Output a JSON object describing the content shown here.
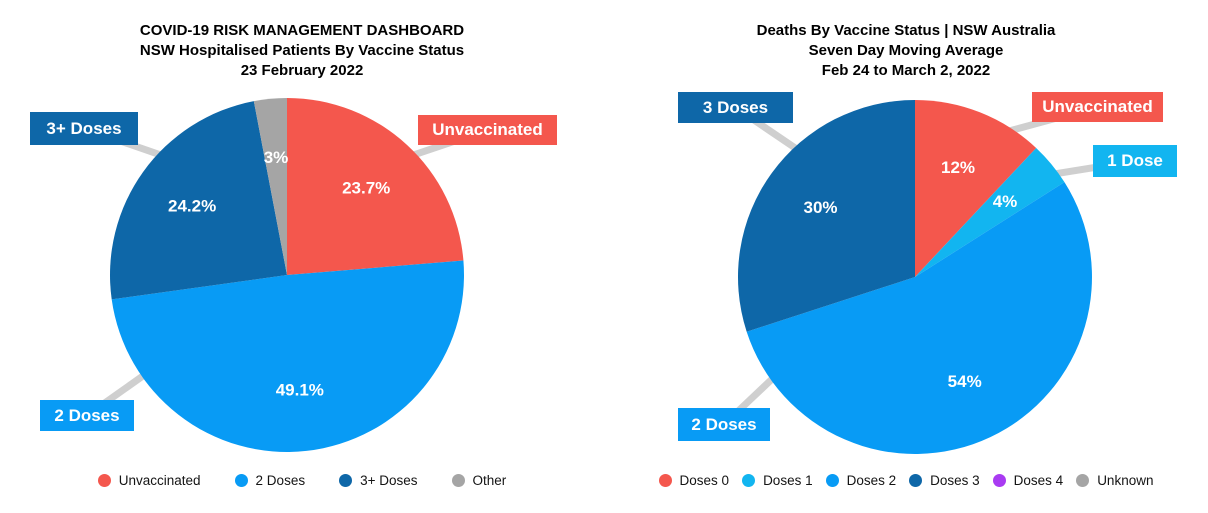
{
  "chart_data": [
    {
      "type": "pie",
      "title": "COVID-19 RISK MANAGEMENT DASHBOARD",
      "subtitle": "NSW Hospitalised Patients By Vaccine Status",
      "date_line": "23 February 2022",
      "direction": "clockwise",
      "start_angle_deg": 0,
      "slices": [
        {
          "label": "Unvaccinated",
          "value": 23.7,
          "display": "23.7%",
          "color": "#F4574D"
        },
        {
          "label": "2 Doses",
          "value": 49.1,
          "display": "49.1%",
          "color": "#089BF5"
        },
        {
          "label": "3+ Doses",
          "value": 24.2,
          "display": "24.2%",
          "color": "#0E67A8"
        },
        {
          "label": "Other",
          "value": 3.0,
          "display": "3%",
          "color": "#A5A5A5"
        }
      ],
      "callouts": [
        {
          "text": "3+ Doses",
          "color": "#0E67A8"
        },
        {
          "text": "Unvaccinated",
          "color": "#F4574D"
        },
        {
          "text": "2 Doses",
          "color": "#089BF5"
        }
      ],
      "legend": [
        {
          "label": "Unvaccinated",
          "color": "#F4574D"
        },
        {
          "label": "2 Doses",
          "color": "#089BF5"
        },
        {
          "label": "3+ Doses",
          "color": "#0E67A8"
        },
        {
          "label": "Other",
          "color": "#A5A5A5"
        }
      ]
    },
    {
      "type": "pie",
      "title": "Deaths By Vaccine Status | NSW Australia",
      "subtitle": "Seven Day Moving Average",
      "date_line": "Feb 24 to March 2, 2022",
      "direction": "clockwise",
      "start_angle_deg": 0,
      "slices": [
        {
          "label": "Unvaccinated",
          "value": 12,
          "display": "12%",
          "color": "#F4574D"
        },
        {
          "label": "1 Dose",
          "value": 4,
          "display": "4%",
          "color": "#12B5F0"
        },
        {
          "label": "2 Doses",
          "value": 54,
          "display": "54%",
          "color": "#089BF5"
        },
        {
          "label": "3 Doses",
          "value": 30,
          "display": "30%",
          "color": "#0E67A8"
        }
      ],
      "callouts": [
        {
          "text": "3 Doses",
          "color": "#0E67A8"
        },
        {
          "text": "Unvaccinated",
          "color": "#F4574D"
        },
        {
          "text": "1 Dose",
          "color": "#12B5F0"
        },
        {
          "text": "2 Doses",
          "color": "#089BF5"
        }
      ],
      "legend": [
        {
          "label": "Doses 0",
          "color": "#F4574D"
        },
        {
          "label": "Doses 1",
          "color": "#12B5F0"
        },
        {
          "label": "Doses 2",
          "color": "#089BF5"
        },
        {
          "label": "Doses 3",
          "color": "#0E67A8"
        },
        {
          "label": "Doses 4",
          "color": "#A93BF2"
        },
        {
          "label": "Unknown",
          "color": "#A5A5A5"
        }
      ]
    }
  ],
  "style_colors": {
    "leader_line": "#CFCFCF",
    "slice_value_text": "#FFFFFF",
    "title_text": "#000000"
  }
}
